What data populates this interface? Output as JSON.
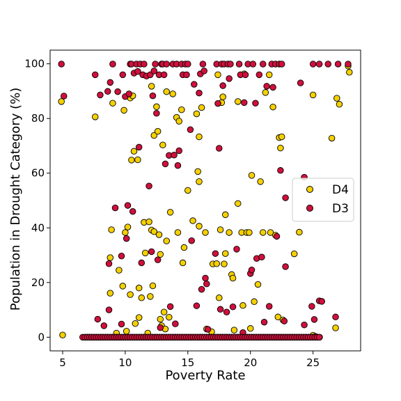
{
  "chart_data": {
    "type": "scatter",
    "title": "",
    "xlabel": "Poverty Rate",
    "ylabel": "Population in Drought Category (%)",
    "xlim": [
      4,
      28.8
    ],
    "ylim": [
      -5,
      105
    ],
    "xticks": [
      5,
      10,
      15,
      20,
      25
    ],
    "yticks": [
      0,
      20,
      40,
      60,
      80,
      100
    ],
    "grid": false,
    "legend_position": "center-right",
    "series": [
      {
        "name": "D4",
        "color": "#f5d000",
        "points": [
          [
            4.9,
            86.2
          ],
          [
            5.0,
            0.8
          ],
          [
            7.6,
            80.6
          ],
          [
            8.8,
            29.1
          ],
          [
            8.9,
            39.3
          ],
          [
            8.8,
            16.1
          ],
          [
            9.0,
            85.6
          ],
          [
            9.3,
            1.5
          ],
          [
            9.5,
            24.5
          ],
          [
            9.8,
            18.7
          ],
          [
            9.9,
            83.0
          ],
          [
            10.0,
            38.3
          ],
          [
            10.1,
            2.2
          ],
          [
            10.2,
            40.3
          ],
          [
            10.4,
            15.6
          ],
          [
            10.4,
            87.5
          ],
          [
            10.5,
            64.8
          ],
          [
            10.6,
            88.3
          ],
          [
            10.7,
            68.0
          ],
          [
            10.8,
            5.0
          ],
          [
            11.0,
            64.9
          ],
          [
            11.1,
            7.2
          ],
          [
            11.1,
            18.0
          ],
          [
            11.3,
            14.4
          ],
          [
            11.5,
            42.0
          ],
          [
            11.6,
            30.8
          ],
          [
            11.8,
            1.5
          ],
          [
            11.9,
            42.2
          ],
          [
            12.0,
            14.9
          ],
          [
            12.1,
            91.8
          ],
          [
            12.1,
            39.2
          ],
          [
            12.2,
            18.8
          ],
          [
            12.3,
            73.8
          ],
          [
            12.3,
            38.6
          ],
          [
            12.5,
            84.3
          ],
          [
            12.6,
            75.3
          ],
          [
            12.7,
            37.5
          ],
          [
            12.8,
            30.3
          ],
          [
            12.8,
            6.6
          ],
          [
            12.9,
            4.2
          ],
          [
            13.0,
            70.3
          ],
          [
            13.1,
            9.2
          ],
          [
            13.2,
            3.0
          ],
          [
            13.3,
            89.8
          ],
          [
            13.3,
            35.2
          ],
          [
            13.5,
            7.3
          ],
          [
            13.6,
            45.7
          ],
          [
            13.8,
            89.0
          ],
          [
            14.1,
            80.4
          ],
          [
            14.2,
            38.3
          ],
          [
            14.3,
            79.0
          ],
          [
            14.5,
            83.2
          ],
          [
            14.6,
            27.2
          ],
          [
            14.7,
            32.8
          ],
          [
            15.0,
            53.7
          ],
          [
            15.4,
            42.6
          ],
          [
            15.7,
            81.7
          ],
          [
            15.8,
            60.6
          ],
          [
            15.9,
            56.9
          ],
          [
            15.9,
            73.3
          ],
          [
            15.9,
            40.6
          ],
          [
            16.1,
            84.0
          ],
          [
            16.4,
            38.3
          ],
          [
            16.5,
            3.0
          ],
          [
            16.9,
            2.0
          ],
          [
            17.0,
            26.8
          ],
          [
            17.3,
            26.9
          ],
          [
            17.4,
            96.0
          ],
          [
            17.5,
            14.4
          ],
          [
            17.6,
            39.3
          ],
          [
            17.7,
            85.8
          ],
          [
            17.8,
            87.9
          ],
          [
            17.9,
            26.8
          ],
          [
            18.0,
            44.8
          ],
          [
            18.0,
            30.6
          ],
          [
            18.3,
            38.3
          ],
          [
            18.5,
            22.9
          ],
          [
            18.6,
            21.6
          ],
          [
            18.7,
            2.6
          ],
          [
            19.0,
            48.9
          ],
          [
            19.0,
            86.2
          ],
          [
            19.3,
            38.3
          ],
          [
            19.4,
            11.6
          ],
          [
            19.5,
            96.3
          ],
          [
            19.7,
            38.3
          ],
          [
            19.9,
            38.3
          ],
          [
            20.0,
            3.2
          ],
          [
            20.1,
            59.2
          ],
          [
            20.3,
            13.0
          ],
          [
            20.6,
            19.3
          ],
          [
            20.8,
            56.9
          ],
          [
            21.0,
            38.3
          ],
          [
            21.2,
            89.5
          ],
          [
            21.6,
            38.3
          ],
          [
            21.5,
            96.0
          ],
          [
            21.8,
            84.2
          ],
          [
            22.0,
            37.3
          ],
          [
            22.2,
            7.4
          ],
          [
            22.3,
            73.0
          ],
          [
            22.4,
            69.2
          ],
          [
            22.5,
            73.3
          ],
          [
            22.6,
            6.3
          ],
          [
            23.5,
            30.5
          ],
          [
            23.9,
            38.4
          ],
          [
            25.0,
            88.6
          ],
          [
            25.0,
            0.7
          ],
          [
            25.2,
            0.3
          ],
          [
            26.5,
            72.8
          ],
          [
            26.8,
            3.4
          ],
          [
            26.9,
            87.4
          ],
          [
            27.1,
            85.2
          ],
          [
            27.8,
            99.2
          ],
          [
            27.9,
            96.9
          ]
        ]
      },
      {
        "name": "D3",
        "color": "#d0103c",
        "points": [
          [
            4.9,
            99.9
          ],
          [
            5.1,
            88.2
          ],
          [
            7.6,
            96.0
          ],
          [
            7.8,
            6.6
          ],
          [
            8.0,
            88.6
          ],
          [
            8.3,
            4.2
          ],
          [
            8.6,
            89.9
          ],
          [
            8.7,
            26.9
          ],
          [
            8.7,
            10.0
          ],
          [
            8.8,
            93.2
          ],
          [
            9.0,
            99.9
          ],
          [
            9.2,
            47.3
          ],
          [
            9.4,
            89.8
          ],
          [
            9.7,
            29.7
          ],
          [
            9.7,
            4.8
          ],
          [
            9.8,
            96.0
          ],
          [
            10.0,
            88.0
          ],
          [
            10.1,
            36.1
          ],
          [
            10.2,
            48.2
          ],
          [
            10.3,
            89.0
          ],
          [
            10.4,
            99.9
          ],
          [
            10.5,
            99.9
          ],
          [
            10.6,
            46.0
          ],
          [
            10.7,
            96.6
          ],
          [
            10.9,
            99.9
          ],
          [
            11.0,
            97.2
          ],
          [
            11.1,
            69.5
          ],
          [
            11.2,
            99.9
          ],
          [
            11.3,
            27.2
          ],
          [
            11.4,
            96.0
          ],
          [
            11.5,
            99.9
          ],
          [
            11.7,
            95.5
          ],
          [
            11.9,
            55.3
          ],
          [
            12.0,
            96.0
          ],
          [
            12.1,
            31.3
          ],
          [
            12.2,
            88.3
          ],
          [
            12.3,
            97.4
          ],
          [
            12.4,
            99.9
          ],
          [
            12.5,
            81.9
          ],
          [
            12.6,
            28.3
          ],
          [
            12.7,
            96.0
          ],
          [
            12.8,
            3.5
          ],
          [
            12.9,
            99.9
          ],
          [
            13.0,
            99.9
          ],
          [
            13.1,
            96.0
          ],
          [
            13.2,
            63.4
          ],
          [
            13.3,
            99.9
          ],
          [
            13.5,
            66.5
          ],
          [
            13.6,
            11.2
          ],
          [
            13.8,
            99.9
          ],
          [
            13.9,
            66.6
          ],
          [
            14.0,
            4.9
          ],
          [
            14.1,
            99.9
          ],
          [
            14.2,
            62.8
          ],
          [
            14.3,
            68.2
          ],
          [
            14.5,
            99.9
          ],
          [
            14.6,
            96.0
          ],
          [
            14.8,
            99.9
          ],
          [
            14.9,
            96.0
          ],
          [
            15.0,
            99.9
          ],
          [
            15.2,
            75.9
          ],
          [
            15.3,
            35.3
          ],
          [
            15.5,
            92.5
          ],
          [
            15.7,
            11.5
          ],
          [
            15.9,
            89.3
          ],
          [
            16.0,
            96.3
          ],
          [
            16.1,
            17.5
          ],
          [
            16.2,
            99.9
          ],
          [
            16.3,
            97.4
          ],
          [
            16.4,
            21.6
          ],
          [
            16.5,
            19.5
          ],
          [
            16.6,
            2.9
          ],
          [
            17.2,
            30.6
          ],
          [
            17.3,
            99.9
          ],
          [
            17.4,
            85.5
          ],
          [
            17.5,
            69.1
          ],
          [
            17.6,
            10.2
          ],
          [
            17.7,
            99.9
          ],
          [
            17.8,
            92.0
          ],
          [
            17.9,
            99.9
          ],
          [
            18.1,
            9.2
          ],
          [
            18.2,
            99.9
          ],
          [
            18.3,
            94.6
          ],
          [
            18.4,
            99.9
          ],
          [
            18.6,
            11.1
          ],
          [
            18.9,
            32.2
          ],
          [
            19.1,
            99.9
          ],
          [
            19.2,
            96.0
          ],
          [
            19.4,
            1.7
          ],
          [
            19.5,
            85.8
          ],
          [
            19.6,
            96.0
          ],
          [
            19.8,
            99.9
          ],
          [
            20.0,
            23.3
          ],
          [
            20.1,
            24.6
          ],
          [
            20.2,
            99.9
          ],
          [
            20.4,
            85.6
          ],
          [
            20.5,
            28.8
          ],
          [
            20.7,
            96.0
          ],
          [
            20.9,
            29.3
          ],
          [
            21.0,
            99.9
          ],
          [
            21.1,
            5.5
          ],
          [
            21.3,
            91.8
          ],
          [
            21.5,
            11.3
          ],
          [
            21.7,
            99.9
          ],
          [
            21.8,
            91.4
          ],
          [
            22.0,
            99.9
          ],
          [
            22.1,
            36.9
          ],
          [
            22.3,
            99.9
          ],
          [
            22.4,
            61.0
          ],
          [
            22.5,
            99.9
          ],
          [
            22.7,
            5.9
          ],
          [
            22.8,
            25.8
          ],
          [
            22.8,
            51.0
          ],
          [
            24.0,
            93.0
          ],
          [
            24.3,
            4.5
          ],
          [
            24.3,
            58.5
          ],
          [
            24.9,
            11.3
          ],
          [
            25.0,
            99.9
          ],
          [
            25.1,
            6.5
          ],
          [
            25.5,
            13.3
          ],
          [
            25.7,
            13.1
          ],
          [
            25.5,
            99.9
          ],
          [
            26.2,
            99.9
          ],
          [
            26.8,
            7.4
          ],
          [
            27.0,
            99.9
          ],
          [
            27.8,
            99.9
          ]
        ]
      }
    ]
  }
}
